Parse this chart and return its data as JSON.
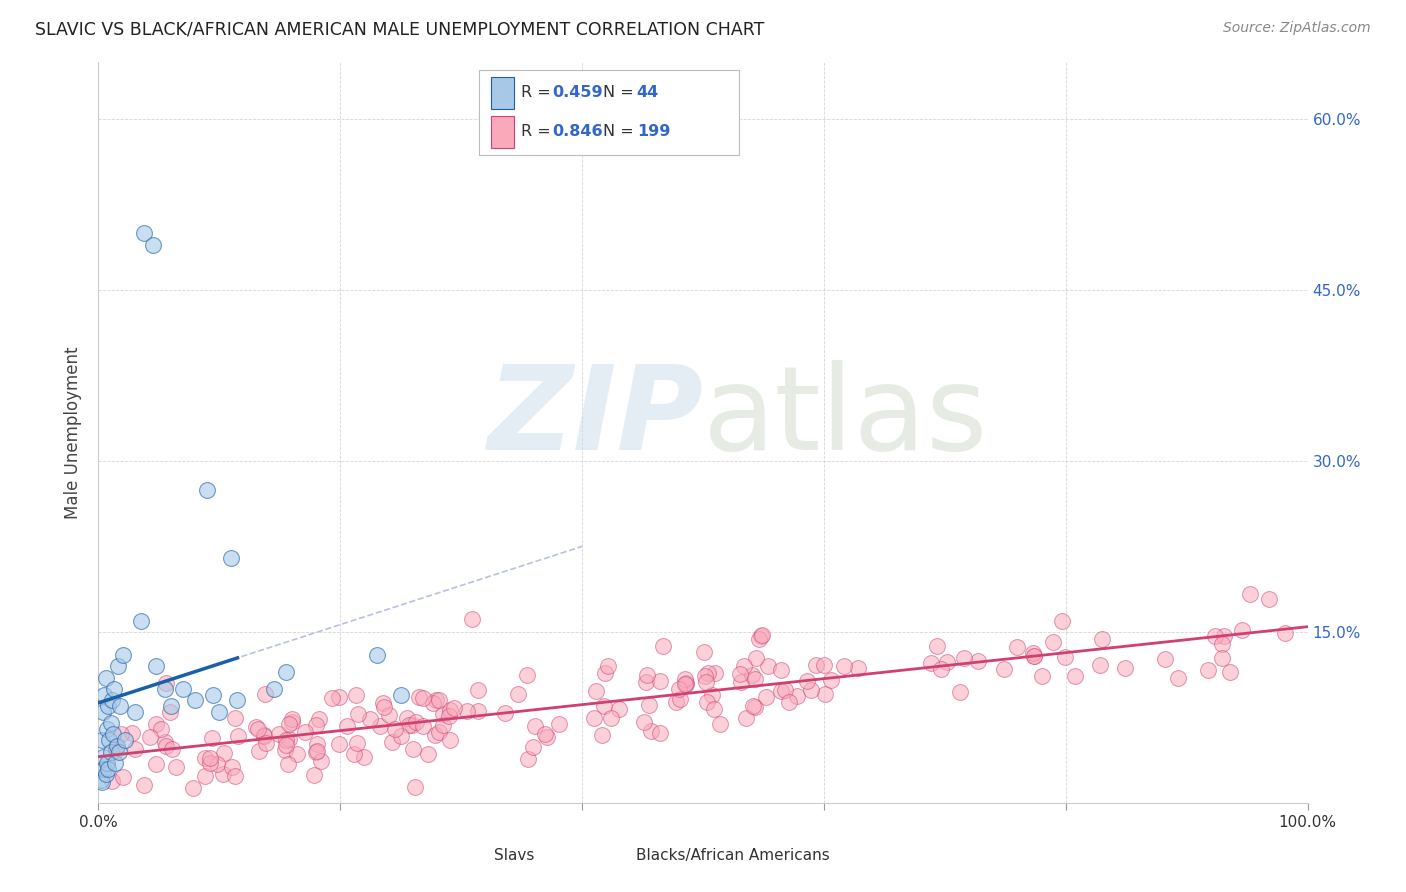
{
  "title": "SLAVIC VS BLACK/AFRICAN AMERICAN MALE UNEMPLOYMENT CORRELATION CHART",
  "source": "Source: ZipAtlas.com",
  "ylabel": "Male Unemployment",
  "legend_labels": [
    "Slavs",
    "Blacks/African Americans"
  ],
  "legend_r_blue": "0.459",
  "legend_n_blue": "44",
  "legend_r_pink": "0.846",
  "legend_n_pink": "199",
  "blue_scatter_color": "#a8c8e8",
  "blue_line_color": "#1a5fa8",
  "pink_scatter_color": "#f8aabb",
  "pink_line_color": "#d04070",
  "grid_color": "#cccccc",
  "title_color": "#222222",
  "right_tick_color": "#3366cc",
  "xlim": [
    0.0,
    1.0
  ],
  "ylim": [
    0.0,
    0.65
  ],
  "right_ytick_vals": [
    0.0,
    0.15,
    0.3,
    0.45,
    0.6
  ],
  "right_yticklabels": [
    "",
    "15.0%",
    "30.0%",
    "45.0%",
    "60.0%"
  ],
  "xtick_vals": [
    0.0,
    0.2,
    0.4,
    0.6,
    0.8,
    1.0
  ],
  "xticklabels": [
    "0.0%",
    "",
    "",
    "",
    "",
    "100.0%"
  ]
}
